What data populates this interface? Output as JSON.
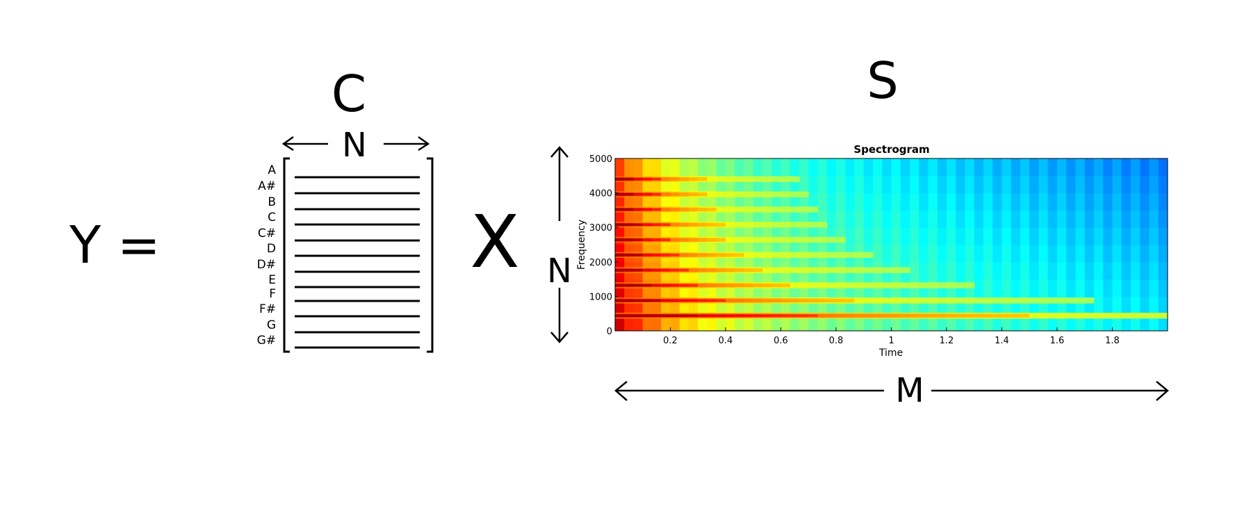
{
  "equation": {
    "lhs": "Y =",
    "c_label": "C",
    "c_width_label": "N",
    "times": "X",
    "s_label": "S",
    "s_height_label": "N",
    "s_width_label": "M"
  },
  "notes": [
    "A",
    "A#",
    "B",
    "C",
    "C#",
    "D",
    "D#",
    "E",
    "F",
    "F#",
    "G",
    "G#"
  ],
  "chart_data": {
    "type": "heatmap",
    "title": "Spectrogram",
    "xlabel": "Time",
    "ylabel": "Frequency",
    "xlim": [
      0,
      2.0
    ],
    "ylim": [
      0,
      5000
    ],
    "xticks": [
      0.2,
      0.4,
      0.6,
      0.8,
      1,
      1.2,
      1.4,
      1.6,
      1.8
    ],
    "yticks": [
      0,
      1000,
      2000,
      3000,
      4000,
      5000
    ],
    "harmonics_hz": [
      440,
      880,
      1320,
      1760,
      2200,
      2640,
      3080,
      3520,
      3960,
      4400
    ],
    "colormap": "jet"
  }
}
